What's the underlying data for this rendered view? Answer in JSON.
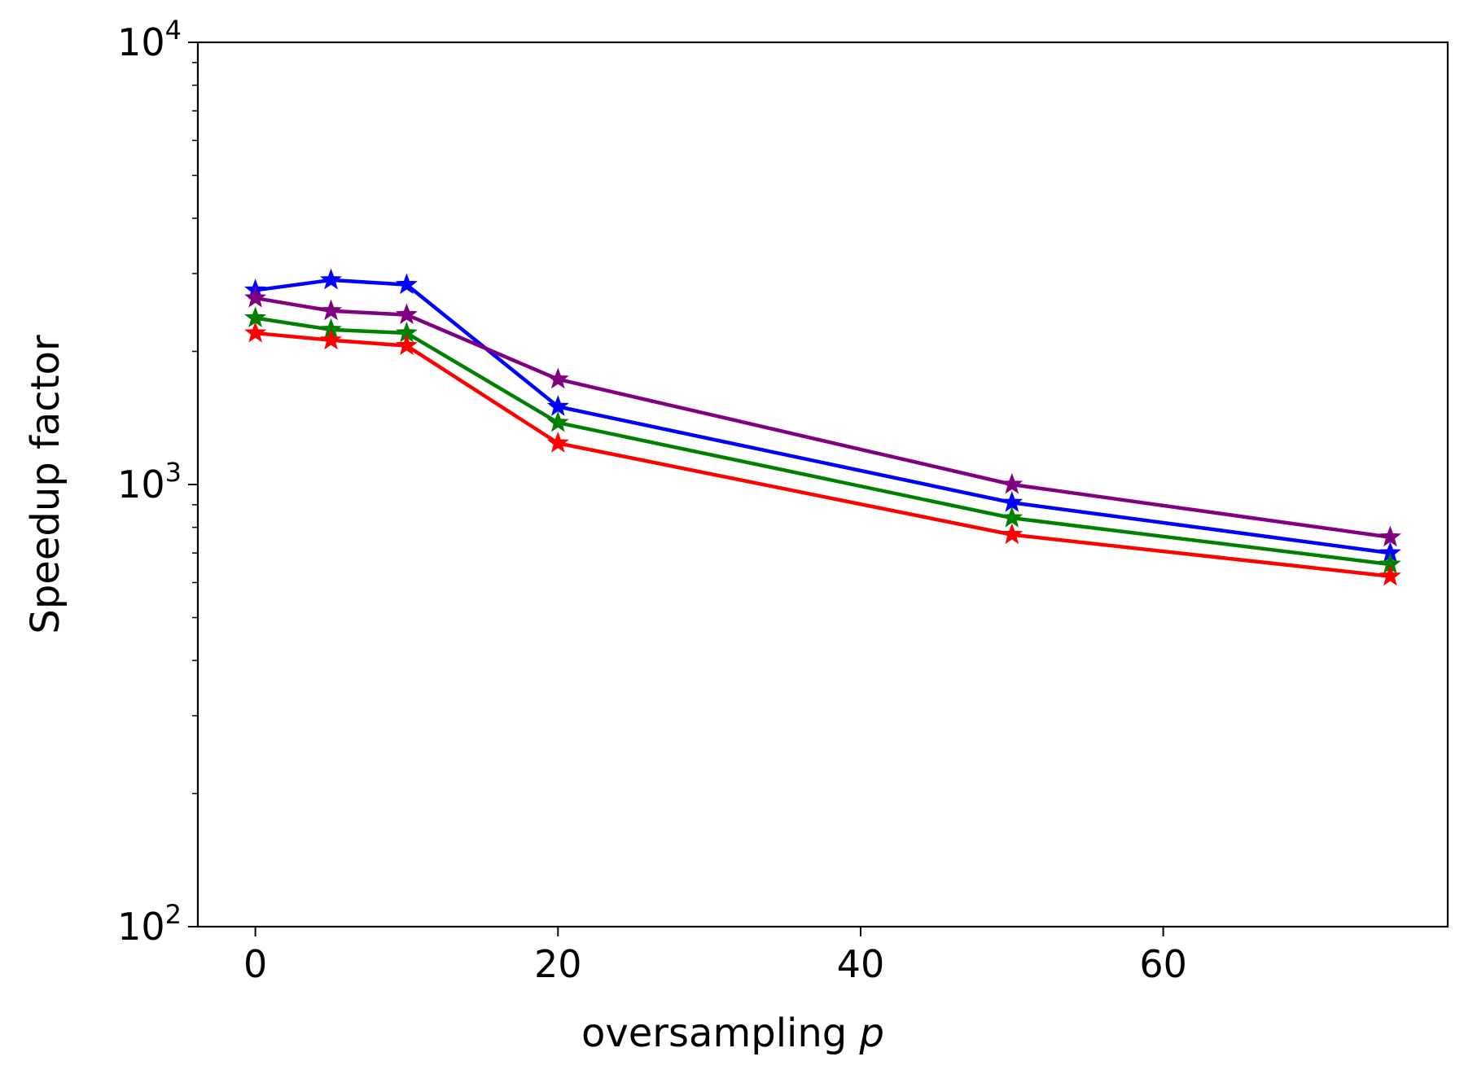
{
  "chart_data": {
    "type": "line",
    "title": "",
    "xlabel": "oversampling",
    "xlabel_var": "p",
    "ylabel": "Speedup factor",
    "xlim": [
      -3.8,
      78.8
    ],
    "ylim": [
      100,
      10000
    ],
    "y_scale": "log",
    "grid": false,
    "legend": "none",
    "x_ticks": [
      0,
      20,
      40,
      60
    ],
    "x_tick_labels": [
      "0",
      "20",
      "40",
      "60"
    ],
    "y_ticks": [
      100,
      1000,
      10000
    ],
    "y_tick_labels": [
      {
        "base": "10",
        "exp": "2"
      },
      {
        "base": "10",
        "exp": "3"
      },
      {
        "base": "10",
        "exp": "4"
      }
    ],
    "marker": "star",
    "x": [
      0,
      5,
      10,
      20,
      50,
      75
    ],
    "series": [
      {
        "color": "#0000ff",
        "values": [
          2750,
          2900,
          2830,
          1500,
          910,
          700
        ]
      },
      {
        "color": "#800080",
        "values": [
          2640,
          2470,
          2420,
          1730,
          1000,
          760
        ]
      },
      {
        "color": "#008000",
        "values": [
          2380,
          2240,
          2200,
          1380,
          840,
          660
        ]
      },
      {
        "color": "#ff0000",
        "values": [
          2200,
          2120,
          2060,
          1240,
          770,
          620
        ]
      }
    ]
  }
}
